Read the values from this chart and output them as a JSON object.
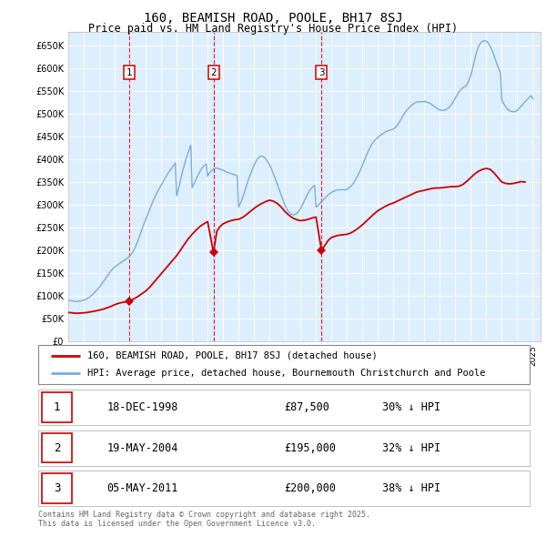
{
  "title": "160, BEAMISH ROAD, POOLE, BH17 8SJ",
  "subtitle": "Price paid vs. HM Land Registry's House Price Index (HPI)",
  "ylabel_ticks": [
    "£0",
    "£50K",
    "£100K",
    "£150K",
    "£200K",
    "£250K",
    "£300K",
    "£350K",
    "£400K",
    "£450K",
    "£500K",
    "£550K",
    "£600K",
    "£650K"
  ],
  "ytick_vals": [
    0,
    50000,
    100000,
    150000,
    200000,
    250000,
    300000,
    350000,
    400000,
    450000,
    500000,
    550000,
    600000,
    650000
  ],
  "ylim": [
    0,
    680000
  ],
  "xlim_start": 1995.0,
  "xlim_end": 2025.5,
  "background_color": "#ddeeff",
  "grid_color": "#ffffff",
  "red_line_color": "#cc0000",
  "blue_line_color": "#7aaddb",
  "transactions": [
    {
      "num": 1,
      "date_str": "18-DEC-1998",
      "price": 87500,
      "pct": "30% ↓ HPI",
      "year": 1998.96
    },
    {
      "num": 2,
      "date_str": "19-MAY-2004",
      "price": 195000,
      "pct": "32% ↓ HPI",
      "year": 2004.38
    },
    {
      "num": 3,
      "date_str": "05-MAY-2011",
      "price": 200000,
      "pct": "38% ↓ HPI",
      "year": 2011.35
    }
  ],
  "legend_label_red": "160, BEAMISH ROAD, POOLE, BH17 8SJ (detached house)",
  "legend_label_blue": "HPI: Average price, detached house, Bournemouth Christchurch and Poole",
  "footer": "Contains HM Land Registry data © Crown copyright and database right 2025.\nThis data is licensed under the Open Government Licence v3.0.",
  "hpi_years": [
    1995.0,
    1995.083,
    1995.167,
    1995.25,
    1995.333,
    1995.417,
    1995.5,
    1995.583,
    1995.667,
    1995.75,
    1995.833,
    1995.917,
    1996.0,
    1996.083,
    1996.167,
    1996.25,
    1996.333,
    1996.417,
    1996.5,
    1996.583,
    1996.667,
    1996.75,
    1996.833,
    1996.917,
    1997.0,
    1997.083,
    1997.167,
    1997.25,
    1997.333,
    1997.417,
    1997.5,
    1997.583,
    1997.667,
    1997.75,
    1997.833,
    1997.917,
    1998.0,
    1998.083,
    1998.167,
    1998.25,
    1998.333,
    1998.417,
    1998.5,
    1998.583,
    1998.667,
    1998.75,
    1998.833,
    1998.917,
    1999.0,
    1999.083,
    1999.167,
    1999.25,
    1999.333,
    1999.417,
    1999.5,
    1999.583,
    1999.667,
    1999.75,
    1999.833,
    1999.917,
    2000.0,
    2000.083,
    2000.167,
    2000.25,
    2000.333,
    2000.417,
    2000.5,
    2000.583,
    2000.667,
    2000.75,
    2000.833,
    2000.917,
    2001.0,
    2001.083,
    2001.167,
    2001.25,
    2001.333,
    2001.417,
    2001.5,
    2001.583,
    2001.667,
    2001.75,
    2001.833,
    2001.917,
    2002.0,
    2002.083,
    2002.167,
    2002.25,
    2002.333,
    2002.417,
    2002.5,
    2002.583,
    2002.667,
    2002.75,
    2002.833,
    2002.917,
    2003.0,
    2003.083,
    2003.167,
    2003.25,
    2003.333,
    2003.417,
    2003.5,
    2003.583,
    2003.667,
    2003.75,
    2003.833,
    2003.917,
    2004.0,
    2004.083,
    2004.167,
    2004.25,
    2004.333,
    2004.417,
    2004.5,
    2004.583,
    2004.667,
    2004.75,
    2004.833,
    2004.917,
    2005.0,
    2005.083,
    2005.167,
    2005.25,
    2005.333,
    2005.417,
    2005.5,
    2005.583,
    2005.667,
    2005.75,
    2005.833,
    2005.917,
    2006.0,
    2006.083,
    2006.167,
    2006.25,
    2006.333,
    2006.417,
    2006.5,
    2006.583,
    2006.667,
    2006.75,
    2006.833,
    2006.917,
    2007.0,
    2007.083,
    2007.167,
    2007.25,
    2007.333,
    2007.417,
    2007.5,
    2007.583,
    2007.667,
    2007.75,
    2007.833,
    2007.917,
    2008.0,
    2008.083,
    2008.167,
    2008.25,
    2008.333,
    2008.417,
    2008.5,
    2008.583,
    2008.667,
    2008.75,
    2008.833,
    2008.917,
    2009.0,
    2009.083,
    2009.167,
    2009.25,
    2009.333,
    2009.417,
    2009.5,
    2009.583,
    2009.667,
    2009.75,
    2009.833,
    2009.917,
    2010.0,
    2010.083,
    2010.167,
    2010.25,
    2010.333,
    2010.417,
    2010.5,
    2010.583,
    2010.667,
    2010.75,
    2010.833,
    2010.917,
    2011.0,
    2011.083,
    2011.167,
    2011.25,
    2011.333,
    2011.417,
    2011.5,
    2011.583,
    2011.667,
    2011.75,
    2011.833,
    2011.917,
    2012.0,
    2012.083,
    2012.167,
    2012.25,
    2012.333,
    2012.417,
    2012.5,
    2012.583,
    2012.667,
    2012.75,
    2012.833,
    2012.917,
    2013.0,
    2013.083,
    2013.167,
    2013.25,
    2013.333,
    2013.417,
    2013.5,
    2013.583,
    2013.667,
    2013.75,
    2013.833,
    2013.917,
    2014.0,
    2014.083,
    2014.167,
    2014.25,
    2014.333,
    2014.417,
    2014.5,
    2014.583,
    2014.667,
    2014.75,
    2014.833,
    2014.917,
    2015.0,
    2015.083,
    2015.167,
    2015.25,
    2015.333,
    2015.417,
    2015.5,
    2015.583,
    2015.667,
    2015.75,
    2015.833,
    2015.917,
    2016.0,
    2016.083,
    2016.167,
    2016.25,
    2016.333,
    2016.417,
    2016.5,
    2016.583,
    2016.667,
    2016.75,
    2016.833,
    2016.917,
    2017.0,
    2017.083,
    2017.167,
    2017.25,
    2017.333,
    2017.417,
    2017.5,
    2017.583,
    2017.667,
    2017.75,
    2017.833,
    2017.917,
    2018.0,
    2018.083,
    2018.167,
    2018.25,
    2018.333,
    2018.417,
    2018.5,
    2018.583,
    2018.667,
    2018.75,
    2018.833,
    2018.917,
    2019.0,
    2019.083,
    2019.167,
    2019.25,
    2019.333,
    2019.417,
    2019.5,
    2019.583,
    2019.667,
    2019.75,
    2019.833,
    2019.917,
    2020.0,
    2020.083,
    2020.167,
    2020.25,
    2020.333,
    2020.417,
    2020.5,
    2020.583,
    2020.667,
    2020.75,
    2020.833,
    2020.917,
    2021.0,
    2021.083,
    2021.167,
    2021.25,
    2021.333,
    2021.417,
    2021.5,
    2021.583,
    2021.667,
    2021.75,
    2021.833,
    2021.917,
    2022.0,
    2022.083,
    2022.167,
    2022.25,
    2022.333,
    2022.417,
    2022.5,
    2022.583,
    2022.667,
    2022.75,
    2022.833,
    2022.917,
    2023.0,
    2023.083,
    2023.167,
    2023.25,
    2023.333,
    2023.417,
    2023.5,
    2023.583,
    2023.667,
    2023.75,
    2023.833,
    2023.917,
    2024.0,
    2024.083,
    2024.167,
    2024.25,
    2024.333,
    2024.417,
    2024.5,
    2024.583,
    2024.667,
    2024.75,
    2024.833,
    2024.917,
    2025.0
  ],
  "hpi_vals": [
    90000,
    89500,
    89000,
    88500,
    88000,
    87500,
    87000,
    87000,
    87500,
    88000,
    88500,
    89000,
    90000,
    91000,
    92500,
    94000,
    96000,
    98000,
    100000,
    103000,
    106000,
    109000,
    112000,
    115000,
    118000,
    122000,
    126000,
    130000,
    134000,
    138000,
    142000,
    146000,
    150000,
    154000,
    157000,
    160000,
    163000,
    165000,
    167000,
    169000,
    171000,
    173000,
    175000,
    177000,
    179000,
    181000,
    183000,
    185000,
    188000,
    192000,
    196000,
    201000,
    207000,
    214000,
    221000,
    229000,
    237000,
    245000,
    253000,
    261000,
    268000,
    275000,
    282000,
    289000,
    296000,
    303000,
    310000,
    316000,
    322000,
    328000,
    333000,
    338000,
    343000,
    348000,
    353000,
    358000,
    363000,
    368000,
    372000,
    376000,
    380000,
    384000,
    388000,
    392000,
    320000,
    330000,
    342000,
    355000,
    367000,
    378000,
    388000,
    398000,
    407000,
    416000,
    424000,
    431000,
    338000,
    344000,
    350000,
    356000,
    362000,
    368000,
    373000,
    378000,
    382000,
    385000,
    388000,
    390000,
    363000,
    368000,
    372000,
    375000,
    378000,
    380000,
    381000,
    381000,
    380000,
    379000,
    378000,
    377000,
    376000,
    375000,
    373000,
    372000,
    371000,
    370000,
    369000,
    368000,
    367000,
    366000,
    365000,
    364000,
    295000,
    300000,
    307000,
    315000,
    323000,
    332000,
    341000,
    350000,
    359000,
    366000,
    373000,
    380000,
    387000,
    393000,
    398000,
    402000,
    405000,
    407000,
    407000,
    406000,
    404000,
    401000,
    397000,
    393000,
    388000,
    382000,
    375000,
    368000,
    361000,
    353000,
    345000,
    337000,
    329000,
    321000,
    313000,
    306000,
    299000,
    293000,
    288000,
    284000,
    281000,
    279000,
    278000,
    278000,
    279000,
    281000,
    284000,
    288000,
    292000,
    297000,
    303000,
    309000,
    315000,
    321000,
    326000,
    331000,
    335000,
    338000,
    341000,
    343000,
    295000,
    297000,
    300000,
    303000,
    306000,
    309000,
    312000,
    315000,
    318000,
    321000,
    323000,
    325000,
    327000,
    329000,
    330000,
    331000,
    332000,
    333000,
    333000,
    333000,
    333000,
    333000,
    333000,
    333000,
    334000,
    336000,
    338000,
    341000,
    344000,
    348000,
    352000,
    357000,
    362000,
    368000,
    374000,
    380000,
    387000,
    394000,
    401000,
    408000,
    415000,
    421000,
    427000,
    432000,
    436000,
    440000,
    443000,
    446000,
    449000,
    451000,
    453000,
    455000,
    457000,
    459000,
    461000,
    462000,
    463000,
    464000,
    465000,
    466000,
    467000,
    469000,
    472000,
    475000,
    479000,
    484000,
    489000,
    494000,
    499000,
    503000,
    507000,
    510000,
    513000,
    516000,
    519000,
    521000,
    523000,
    525000,
    526000,
    527000,
    527000,
    527000,
    527000,
    527000,
    527000,
    527000,
    526000,
    525000,
    524000,
    522000,
    520000,
    518000,
    516000,
    514000,
    512000,
    510000,
    509000,
    508000,
    508000,
    508000,
    509000,
    510000,
    512000,
    514000,
    517000,
    521000,
    525000,
    530000,
    535000,
    540000,
    545000,
    549000,
    553000,
    556000,
    558000,
    560000,
    561000,
    565000,
    571000,
    578000,
    585000,
    596000,
    608000,
    620000,
    631000,
    641000,
    649000,
    654000,
    658000,
    660000,
    661000,
    661000,
    660000,
    658000,
    654000,
    649000,
    643000,
    636000,
    628000,
    620000,
    612000,
    604000,
    597000,
    590000,
    530000,
    525000,
    520000,
    516000,
    512000,
    509000,
    507000,
    506000,
    505000,
    505000,
    505000,
    506000,
    508000,
    511000,
    514000,
    517000,
    521000,
    524000,
    527000,
    530000,
    533000,
    536000,
    538000,
    540000,
    533000
  ],
  "pp_years": [
    1995.0,
    1995.25,
    1995.5,
    1995.75,
    1996.0,
    1996.25,
    1996.5,
    1996.75,
    1997.0,
    1997.25,
    1997.5,
    1997.75,
    1998.0,
    1998.25,
    1998.5,
    1998.75,
    1998.96,
    1999.25,
    1999.5,
    1999.75,
    2000.0,
    2000.25,
    2000.5,
    2000.75,
    2001.0,
    2001.25,
    2001.5,
    2001.75,
    2002.0,
    2002.25,
    2002.5,
    2002.75,
    2003.0,
    2003.25,
    2003.5,
    2003.75,
    2004.0,
    2004.38,
    2004.6,
    2004.8,
    2005.0,
    2005.25,
    2005.5,
    2005.75,
    2006.0,
    2006.25,
    2006.5,
    2006.75,
    2007.0,
    2007.25,
    2007.5,
    2007.75,
    2008.0,
    2008.25,
    2008.5,
    2008.75,
    2009.0,
    2009.25,
    2009.5,
    2009.75,
    2010.0,
    2010.25,
    2010.5,
    2010.75,
    2011.0,
    2011.35,
    2011.6,
    2011.8,
    2012.0,
    2012.25,
    2012.5,
    2012.75,
    2013.0,
    2013.25,
    2013.5,
    2013.75,
    2014.0,
    2014.25,
    2014.5,
    2014.75,
    2015.0,
    2015.25,
    2015.5,
    2015.75,
    2016.0,
    2016.25,
    2016.5,
    2016.75,
    2017.0,
    2017.25,
    2017.5,
    2017.75,
    2018.0,
    2018.25,
    2018.5,
    2018.75,
    2019.0,
    2019.25,
    2019.5,
    2019.75,
    2020.0,
    2020.25,
    2020.5,
    2020.75,
    2021.0,
    2021.25,
    2021.5,
    2021.75,
    2022.0,
    2022.25,
    2022.5,
    2022.75,
    2023.0,
    2023.25,
    2023.5,
    2023.75,
    2024.0,
    2024.25,
    2024.5
  ],
  "pp_vals": [
    63000,
    62000,
    61000,
    61500,
    62000,
    63000,
    64500,
    66000,
    68000,
    70000,
    73000,
    76000,
    80000,
    83000,
    85000,
    86500,
    87500,
    93000,
    98000,
    104000,
    110000,
    118000,
    128000,
    138000,
    148000,
    158000,
    168000,
    178000,
    188000,
    200000,
    213000,
    225000,
    235000,
    244000,
    252000,
    258000,
    263000,
    195000,
    242000,
    252000,
    258000,
    262000,
    265000,
    267000,
    268000,
    272000,
    278000,
    285000,
    292000,
    298000,
    303000,
    307000,
    310000,
    308000,
    303000,
    295000,
    285000,
    277000,
    271000,
    267000,
    265000,
    266000,
    268000,
    271000,
    273000,
    200000,
    212000,
    222000,
    228000,
    231000,
    233000,
    234000,
    235000,
    238000,
    243000,
    249000,
    256000,
    264000,
    272000,
    280000,
    287000,
    292000,
    297000,
    301000,
    304000,
    308000,
    312000,
    316000,
    320000,
    324000,
    328000,
    330000,
    332000,
    334000,
    336000,
    337000,
    337000,
    338000,
    339000,
    340000,
    340000,
    341000,
    345000,
    352000,
    360000,
    368000,
    374000,
    378000,
    380000,
    378000,
    370000,
    360000,
    350000,
    347000,
    346000,
    347000,
    349000,
    351000,
    350000
  ]
}
